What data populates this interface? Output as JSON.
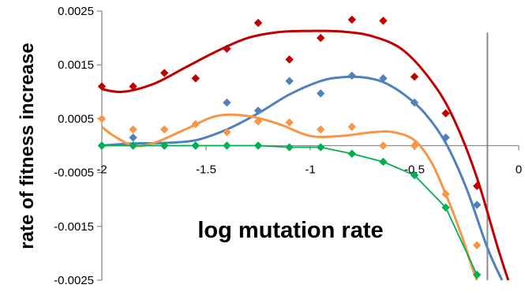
{
  "chart_data": {
    "type": "scatter",
    "xlabel": "log mutation rate",
    "ylabel": "rate of fitness increase",
    "xlim": [
      -2,
      0
    ],
    "ylim": [
      -0.0025,
      0.0025
    ],
    "xticks": [
      -2,
      -1.5,
      -1,
      -0.5,
      0
    ],
    "xtick_labels": [
      "-2",
      "-1.5",
      "-1",
      "-0.5",
      "0"
    ],
    "yticks": [
      0.0025,
      0.0015,
      0.0005,
      -0.0005,
      -0.0015,
      -0.0025
    ],
    "ytick_labels": [
      "0.0025",
      "0.0015",
      "0.0005",
      "-0.0005",
      "-0.0015",
      "-0.0025"
    ],
    "grid": false,
    "reference_line_x": -0.15,
    "series": [
      {
        "color": "#c00000",
        "marker": "diamond",
        "x": [
          -2,
          -1.85,
          -1.7,
          -1.55,
          -1.4,
          -1.25,
          -1.1,
          -0.95,
          -0.8,
          -0.65,
          -0.5,
          -0.35,
          -0.2
        ],
        "y": [
          0.0011,
          0.0011,
          0.00135,
          0.00125,
          0.0018,
          0.00228,
          0.0016,
          0.002,
          0.00234,
          0.00232,
          0.00128,
          0.0006,
          -0.00075
        ],
        "trend": {
          "x": [
            -2,
            -1.9,
            -1.75,
            -1.6,
            -1.45,
            -1.3,
            -1.15,
            -1.0,
            -0.85,
            -0.7,
            -0.55,
            -0.4,
            -0.3,
            -0.2,
            -0.1,
            -0.05
          ],
          "y": [
            0.00105,
            0.001,
            0.00115,
            0.00145,
            0.00175,
            0.002,
            0.00211,
            0.00213,
            0.00212,
            0.00203,
            0.00176,
            0.0011,
            0.0004,
            -0.0006,
            -0.0019,
            -0.0025
          ]
        }
      },
      {
        "color": "#4f81bd",
        "marker": "diamond",
        "x": [
          -2,
          -1.85,
          -1.7,
          -1.55,
          -1.4,
          -1.25,
          -1.1,
          -0.95,
          -0.8,
          -0.65,
          -0.5,
          -0.35,
          -0.2
        ],
        "y": [
          0.0,
          0.00015,
          0.0,
          0.0,
          0.0008,
          0.00065,
          0.0012,
          0.00097,
          0.0013,
          0.00125,
          0.0008,
          0.00015,
          -0.0011
        ],
        "trend": {
          "x": [
            -2,
            -1.85,
            -1.7,
            -1.55,
            -1.4,
            -1.25,
            -1.1,
            -0.95,
            -0.85,
            -0.75,
            -0.65,
            -0.55,
            -0.45,
            -0.35,
            -0.25,
            -0.15,
            -0.08
          ],
          "y": [
            0.0,
            4e-05,
            5e-05,
            0.0001,
            0.0003,
            0.0006,
            0.00095,
            0.0012,
            0.00127,
            0.00127,
            0.00118,
            0.00095,
            0.0006,
            5e-05,
            -0.0008,
            -0.0019,
            -0.0025
          ]
        }
      },
      {
        "color": "#f79646",
        "marker": "diamond",
        "x": [
          -2,
          -1.85,
          -1.7,
          -1.55,
          -1.4,
          -1.25,
          -1.1,
          -0.95,
          -0.8,
          -0.65,
          -0.5,
          -0.35,
          -0.2
        ],
        "y": [
          0.0005,
          0.0003,
          0.0003,
          0.0004,
          0.00025,
          0.00045,
          0.00043,
          0.0003,
          0.00035,
          0.0,
          0.0,
          -0.0009,
          -0.00185
        ],
        "trend": {
          "x": [
            -2,
            -1.95,
            -1.85,
            -1.75,
            -1.6,
            -1.45,
            -1.3,
            -1.15,
            -1.0,
            -0.85,
            -0.7,
            -0.6,
            -0.5,
            -0.42,
            -0.35,
            -0.28,
            -0.22,
            -0.2
          ],
          "y": [
            0.00035,
            0.0002,
            0.0,
            5e-05,
            0.0003,
            0.00055,
            0.00055,
            0.0004,
            0.00018,
            0.00018,
            0.00025,
            0.00025,
            0.0001,
            -0.0003,
            -0.0009,
            -0.0016,
            -0.0023,
            -0.0025
          ]
        }
      },
      {
        "color": "#00b050",
        "marker": "diamond",
        "x": [
          -2,
          -1.85,
          -1.7,
          -1.55,
          -1.4,
          -1.25,
          -1.1,
          -0.95,
          -0.8,
          -0.65,
          -0.5,
          -0.35,
          -0.2
        ],
        "y": [
          0.0,
          0.0,
          0.0,
          0.0,
          0.0,
          0.0,
          -3e-05,
          -3e-05,
          -0.00015,
          -0.0003,
          -0.00055,
          -0.00115,
          -0.0024
        ],
        "trend": {
          "x": [
            -2,
            -1.85,
            -1.7,
            -1.55,
            -1.4,
            -1.25,
            -1.1,
            -0.95,
            -0.8,
            -0.65,
            -0.5,
            -0.35,
            -0.2
          ],
          "y": [
            0.0,
            0.0,
            0.0,
            0.0,
            0.0,
            0.0,
            -3e-05,
            -3e-05,
            -0.00015,
            -0.0003,
            -0.00055,
            -0.00115,
            -0.0024
          ]
        }
      }
    ]
  }
}
